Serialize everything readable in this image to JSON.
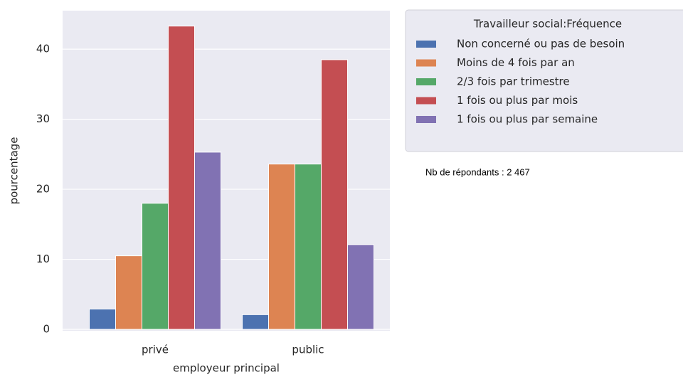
{
  "chart_data": {
    "type": "bar",
    "categories": [
      "privé",
      "public"
    ],
    "x_label": "employeur principal",
    "y_label": "pourcentage",
    "legend_title": "Travailleur social:Fréquence",
    "annotation": "Nb de répondants : 2 467",
    "series": [
      {
        "name": "Non concerné ou pas de besoin",
        "color": "#4c72b0",
        "values": [
          2.9,
          2.1
        ]
      },
      {
        "name": "Moins de 4 fois par an",
        "color": "#dd8452",
        "values": [
          10.5,
          23.6
        ]
      },
      {
        "name": "2/3 fois par trimestre",
        "color": "#55a868",
        "values": [
          18.0,
          23.6
        ]
      },
      {
        "name": "1 fois ou plus par mois",
        "color": "#c44e52",
        "values": [
          43.3,
          38.5
        ]
      },
      {
        "name": "1 fois ou plus par semaine",
        "color": "#8172b3",
        "values": [
          25.3,
          12.1
        ]
      }
    ],
    "ylim": [
      0,
      45.5
    ],
    "yticks": [
      0,
      10,
      20,
      30,
      40
    ],
    "grid": true,
    "legend": "outside right"
  }
}
